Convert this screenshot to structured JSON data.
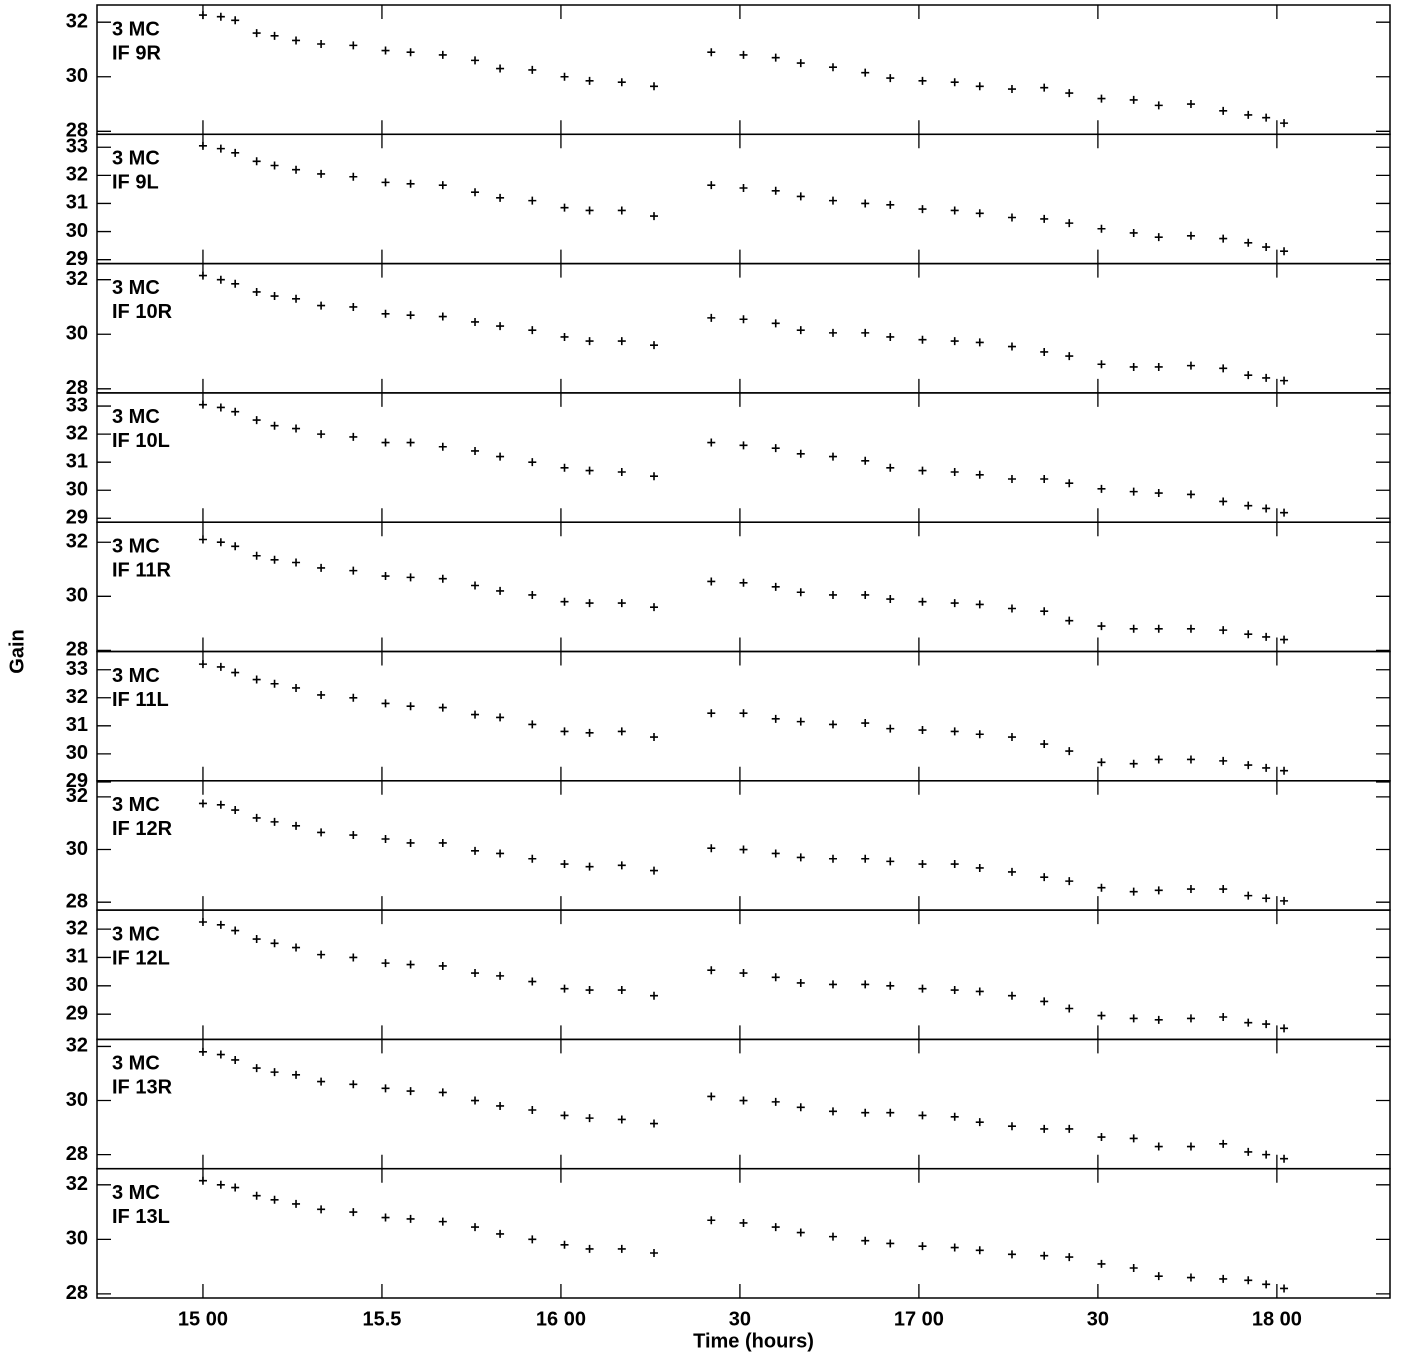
{
  "chart_data": [
    {
      "type": "scatter",
      "title": "3 MC",
      "subtitle": "IF 9R",
      "ylabel": "Gain",
      "ylim": [
        27.89,
        32.63
      ],
      "yticks": [
        28,
        30,
        32
      ],
      "x": [
        15.0,
        15.05,
        15.09,
        15.15,
        15.2,
        15.26,
        15.33,
        15.42,
        15.51,
        15.58,
        15.67,
        15.76,
        15.83,
        15.92,
        16.01,
        16.08,
        16.17,
        16.26,
        16.42,
        16.51,
        16.6,
        16.67,
        16.76,
        16.85,
        16.92,
        17.01,
        17.1,
        17.17,
        17.26,
        17.35,
        17.42,
        17.51,
        17.6,
        17.67,
        17.76,
        17.85,
        17.92,
        17.97,
        18.02
      ],
      "values": [
        32.26,
        32.2,
        32.07,
        31.6,
        31.5,
        31.33,
        31.2,
        31.15,
        30.96,
        30.9,
        30.8,
        30.6,
        30.3,
        30.25,
        30.0,
        29.85,
        29.8,
        29.65,
        30.9,
        30.8,
        30.7,
        30.5,
        30.35,
        30.15,
        29.95,
        29.85,
        29.8,
        29.65,
        29.55,
        29.6,
        29.4,
        29.2,
        29.15,
        28.95,
        29.0,
        28.75,
        28.6,
        28.5,
        28.3
      ]
    },
    {
      "type": "scatter",
      "title": "3 MC",
      "subtitle": "IF 9L",
      "ylim": [
        28.86,
        33.46
      ],
      "yticks": [
        29,
        30,
        31,
        32,
        33
      ],
      "x": [
        15.0,
        15.05,
        15.09,
        15.15,
        15.2,
        15.26,
        15.33,
        15.42,
        15.51,
        15.58,
        15.67,
        15.76,
        15.83,
        15.92,
        16.01,
        16.08,
        16.17,
        16.26,
        16.42,
        16.51,
        16.6,
        16.67,
        16.76,
        16.85,
        16.92,
        17.01,
        17.1,
        17.17,
        17.26,
        17.35,
        17.42,
        17.51,
        17.6,
        17.67,
        17.76,
        17.85,
        17.92,
        17.97,
        18.02
      ],
      "values": [
        33.05,
        32.95,
        32.8,
        32.5,
        32.35,
        32.2,
        32.05,
        31.95,
        31.75,
        31.7,
        31.65,
        31.4,
        31.2,
        31.1,
        30.85,
        30.75,
        30.75,
        30.55,
        31.65,
        31.55,
        31.45,
        31.25,
        31.1,
        31.0,
        30.95,
        30.8,
        30.75,
        30.65,
        30.5,
        30.45,
        30.3,
        30.1,
        29.95,
        29.8,
        29.85,
        29.75,
        29.6,
        29.45,
        29.3
      ]
    },
    {
      "type": "scatter",
      "title": "3 MC",
      "subtitle": "IF 10R",
      "ylim": [
        27.85,
        32.59
      ],
      "yticks": [
        28,
        30,
        32
      ],
      "x": [
        15.0,
        15.05,
        15.09,
        15.15,
        15.2,
        15.26,
        15.33,
        15.42,
        15.51,
        15.58,
        15.67,
        15.76,
        15.83,
        15.92,
        16.01,
        16.08,
        16.17,
        16.26,
        16.42,
        16.51,
        16.6,
        16.67,
        16.76,
        16.85,
        16.92,
        17.01,
        17.1,
        17.17,
        17.26,
        17.35,
        17.42,
        17.51,
        17.6,
        17.67,
        17.76,
        17.85,
        17.92,
        17.97,
        18.02
      ],
      "values": [
        32.15,
        32.0,
        31.85,
        31.55,
        31.4,
        31.3,
        31.05,
        31.0,
        30.75,
        30.7,
        30.65,
        30.45,
        30.3,
        30.15,
        29.9,
        29.75,
        29.75,
        29.6,
        30.6,
        30.55,
        30.4,
        30.15,
        30.05,
        30.05,
        29.9,
        29.8,
        29.75,
        29.7,
        29.55,
        29.35,
        29.2,
        28.9,
        28.8,
        28.8,
        28.85,
        28.75,
        28.5,
        28.4,
        28.3
      ]
    },
    {
      "type": "scatter",
      "title": "3 MC",
      "subtitle": "IF 10L",
      "ylim": [
        28.86,
        33.47
      ],
      "yticks": [
        29,
        30,
        31,
        32,
        33
      ],
      "x": [
        15.0,
        15.05,
        15.09,
        15.15,
        15.2,
        15.26,
        15.33,
        15.42,
        15.51,
        15.58,
        15.67,
        15.76,
        15.83,
        15.92,
        16.01,
        16.08,
        16.17,
        16.26,
        16.42,
        16.51,
        16.6,
        16.67,
        16.76,
        16.85,
        16.92,
        17.01,
        17.1,
        17.17,
        17.26,
        17.35,
        17.42,
        17.51,
        17.6,
        17.67,
        17.76,
        17.85,
        17.92,
        17.97,
        18.02
      ],
      "values": [
        33.05,
        32.95,
        32.8,
        32.5,
        32.3,
        32.2,
        32.0,
        31.9,
        31.7,
        31.7,
        31.55,
        31.4,
        31.2,
        31.0,
        30.8,
        30.7,
        30.65,
        30.5,
        31.7,
        31.6,
        31.5,
        31.3,
        31.2,
        31.05,
        30.8,
        30.7,
        30.65,
        30.55,
        30.4,
        30.4,
        30.25,
        30.05,
        29.95,
        29.9,
        29.85,
        29.6,
        29.45,
        29.35,
        29.2
      ]
    },
    {
      "type": "scatter",
      "title": "3 MC",
      "subtitle": "IF 11R",
      "ylim": [
        27.96,
        32.74
      ],
      "yticks": [
        28,
        30,
        32
      ],
      "x": [
        15.0,
        15.05,
        15.09,
        15.15,
        15.2,
        15.26,
        15.33,
        15.42,
        15.51,
        15.58,
        15.67,
        15.76,
        15.83,
        15.92,
        16.01,
        16.08,
        16.17,
        16.26,
        16.42,
        16.51,
        16.6,
        16.67,
        16.76,
        16.85,
        16.92,
        17.01,
        17.1,
        17.17,
        17.26,
        17.35,
        17.42,
        17.51,
        17.6,
        17.67,
        17.76,
        17.85,
        17.92,
        17.97,
        18.02
      ],
      "values": [
        32.1,
        32.0,
        31.85,
        31.5,
        31.35,
        31.25,
        31.05,
        30.95,
        30.75,
        30.7,
        30.65,
        30.4,
        30.2,
        30.05,
        29.8,
        29.75,
        29.75,
        29.6,
        30.55,
        30.5,
        30.35,
        30.15,
        30.05,
        30.05,
        29.9,
        29.8,
        29.75,
        29.7,
        29.55,
        29.45,
        29.1,
        28.9,
        28.8,
        28.8,
        28.8,
        28.75,
        28.6,
        28.5,
        28.4
      ]
    },
    {
      "type": "scatter",
      "title": "3 MC",
      "subtitle": "IF 11L",
      "ylim": [
        29.04,
        33.65
      ],
      "yticks": [
        29,
        30,
        31,
        32,
        33
      ],
      "x": [
        15.0,
        15.05,
        15.09,
        15.15,
        15.2,
        15.26,
        15.33,
        15.42,
        15.51,
        15.58,
        15.67,
        15.76,
        15.83,
        15.92,
        16.01,
        16.08,
        16.17,
        16.26,
        16.42,
        16.51,
        16.6,
        16.67,
        16.76,
        16.85,
        16.92,
        17.01,
        17.1,
        17.17,
        17.26,
        17.35,
        17.42,
        17.51,
        17.6,
        17.67,
        17.76,
        17.85,
        17.92,
        17.97,
        18.02
      ],
      "values": [
        33.2,
        33.1,
        32.9,
        32.65,
        32.5,
        32.35,
        32.1,
        32.0,
        31.8,
        31.7,
        31.65,
        31.4,
        31.3,
        31.05,
        30.8,
        30.75,
        30.8,
        30.6,
        31.45,
        31.45,
        31.25,
        31.15,
        31.05,
        31.1,
        30.9,
        30.85,
        30.8,
        30.7,
        30.6,
        30.35,
        30.1,
        29.7,
        29.65,
        29.8,
        29.8,
        29.75,
        29.6,
        29.5,
        29.4
      ]
    },
    {
      "type": "scatter",
      "title": "3 MC",
      "subtitle": "IF 12R",
      "ylim": [
        27.7,
        32.61
      ],
      "yticks": [
        28,
        30,
        32
      ],
      "x": [
        15.0,
        15.05,
        15.09,
        15.15,
        15.2,
        15.26,
        15.33,
        15.42,
        15.51,
        15.58,
        15.67,
        15.76,
        15.83,
        15.92,
        16.01,
        16.08,
        16.17,
        16.26,
        16.42,
        16.51,
        16.6,
        16.67,
        16.76,
        16.85,
        16.92,
        17.01,
        17.1,
        17.17,
        17.26,
        17.35,
        17.42,
        17.51,
        17.6,
        17.67,
        17.76,
        17.85,
        17.92,
        17.97,
        18.02
      ],
      "values": [
        31.75,
        31.7,
        31.5,
        31.2,
        31.05,
        30.9,
        30.65,
        30.55,
        30.4,
        30.25,
        30.25,
        29.95,
        29.85,
        29.65,
        29.45,
        29.35,
        29.4,
        29.2,
        30.05,
        30.0,
        29.85,
        29.7,
        29.65,
        29.65,
        29.55,
        29.45,
        29.45,
        29.3,
        29.15,
        28.95,
        28.8,
        28.55,
        28.4,
        28.45,
        28.5,
        28.5,
        28.25,
        28.15,
        28.05
      ]
    },
    {
      "type": "scatter",
      "title": "3 MC",
      "subtitle": "IF 12L",
      "ylim": [
        28.11,
        32.67
      ],
      "yticks": [
        29,
        30,
        31,
        32
      ],
      "x": [
        15.0,
        15.05,
        15.09,
        15.15,
        15.2,
        15.26,
        15.33,
        15.42,
        15.51,
        15.58,
        15.67,
        15.76,
        15.83,
        15.92,
        16.01,
        16.08,
        16.17,
        16.26,
        16.42,
        16.51,
        16.6,
        16.67,
        16.76,
        16.85,
        16.92,
        17.01,
        17.1,
        17.17,
        17.26,
        17.35,
        17.42,
        17.51,
        17.6,
        17.67,
        17.76,
        17.85,
        17.92,
        17.97,
        18.02
      ],
      "values": [
        32.25,
        32.15,
        31.95,
        31.65,
        31.5,
        31.35,
        31.1,
        31.0,
        30.8,
        30.75,
        30.7,
        30.45,
        30.35,
        30.15,
        29.9,
        29.85,
        29.85,
        29.65,
        30.55,
        30.45,
        30.3,
        30.1,
        30.05,
        30.05,
        30.0,
        29.9,
        29.85,
        29.8,
        29.65,
        29.45,
        29.2,
        28.95,
        28.85,
        28.8,
        28.85,
        28.9,
        28.7,
        28.65,
        28.5
      ]
    },
    {
      "type": "scatter",
      "title": "3 MC",
      "subtitle": "IF 13R",
      "ylim": [
        27.48,
        32.26
      ],
      "yticks": [
        28,
        30,
        32
      ],
      "x": [
        15.0,
        15.05,
        15.09,
        15.15,
        15.2,
        15.26,
        15.33,
        15.42,
        15.51,
        15.58,
        15.67,
        15.76,
        15.83,
        15.92,
        16.01,
        16.08,
        16.17,
        16.26,
        16.42,
        16.51,
        16.6,
        16.67,
        16.76,
        16.85,
        16.92,
        17.01,
        17.1,
        17.17,
        17.26,
        17.35,
        17.42,
        17.51,
        17.6,
        17.67,
        17.76,
        17.85,
        17.92,
        17.97,
        18.02
      ],
      "values": [
        31.8,
        31.7,
        31.5,
        31.2,
        31.05,
        30.95,
        30.7,
        30.6,
        30.45,
        30.35,
        30.3,
        30.0,
        29.8,
        29.65,
        29.45,
        29.35,
        29.3,
        29.15,
        30.15,
        30.0,
        29.95,
        29.75,
        29.6,
        29.55,
        29.55,
        29.45,
        29.4,
        29.2,
        29.05,
        28.95,
        28.95,
        28.65,
        28.6,
        28.3,
        28.3,
        28.4,
        28.1,
        28.0,
        27.85
      ]
    },
    {
      "type": "scatter",
      "title": "3 MC",
      "subtitle": "IF 13L",
      "xlabel": "Time (hours)",
      "ylim": [
        27.85,
        32.59
      ],
      "yticks": [
        28,
        30,
        32
      ],
      "xlim": [
        14.704,
        18.316
      ],
      "xticks": [
        {
          "value": 15,
          "label": "15 00"
        },
        15.5,
        {
          "value": 16,
          "label": "16 00"
        },
        {
          "value": 16.5,
          "label": "30"
        },
        {
          "value": 17,
          "label": "17 00"
        },
        {
          "value": 17.5,
          "label": "30"
        },
        {
          "value": 18,
          "label": "18 00"
        }
      ],
      "x": [
        15.0,
        15.05,
        15.09,
        15.15,
        15.2,
        15.26,
        15.33,
        15.42,
        15.51,
        15.58,
        15.67,
        15.76,
        15.83,
        15.92,
        16.01,
        16.08,
        16.17,
        16.26,
        16.42,
        16.51,
        16.6,
        16.67,
        16.76,
        16.85,
        16.92,
        17.01,
        17.1,
        17.17,
        17.26,
        17.35,
        17.42,
        17.51,
        17.6,
        17.67,
        17.76,
        17.85,
        17.92,
        17.97,
        18.02
      ],
      "values": [
        32.15,
        32.0,
        31.9,
        31.6,
        31.45,
        31.3,
        31.1,
        31.0,
        30.8,
        30.75,
        30.65,
        30.45,
        30.2,
        30.0,
        29.8,
        29.65,
        29.65,
        29.5,
        30.7,
        30.6,
        30.45,
        30.25,
        30.1,
        29.95,
        29.85,
        29.75,
        29.7,
        29.6,
        29.45,
        29.4,
        29.35,
        29.1,
        28.95,
        28.65,
        28.6,
        28.55,
        28.5,
        28.35,
        28.2
      ]
    }
  ]
}
